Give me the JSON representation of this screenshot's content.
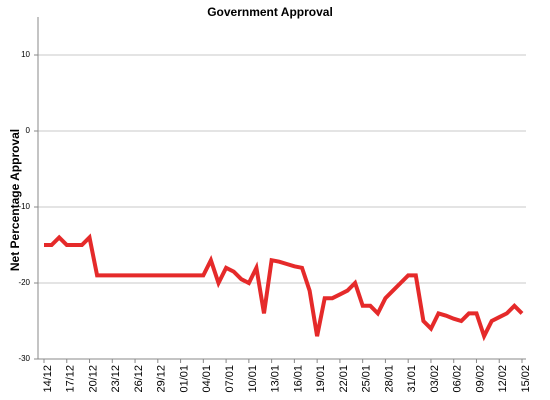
{
  "chart_data": {
    "type": "line",
    "title": "Government Approval",
    "y_label": "Net Percentage Approval",
    "categories": [
      "14/12",
      null,
      null,
      "17/12",
      null,
      null,
      "20/12",
      null,
      null,
      "23/12",
      null,
      null,
      "26/12",
      null,
      null,
      "29/12",
      null,
      null,
      "01/01",
      null,
      null,
      "04/01",
      null,
      null,
      "07/01",
      null,
      null,
      "10/01",
      null,
      null,
      "13/01",
      null,
      null,
      "16/01",
      null,
      null,
      "19/01",
      null,
      null,
      "22/01",
      null,
      null,
      "25/01",
      null,
      null,
      "28/01",
      null,
      null,
      "31/01",
      null,
      null,
      "03/02",
      null,
      null,
      "06/02",
      null,
      null,
      "09/02",
      null,
      null,
      "12/02",
      null,
      null,
      "15/02"
    ],
    "series": [
      {
        "name": "Net Percentage Approval",
        "color": "#e52a2a",
        "values": [
          -15,
          -15,
          -14,
          -15,
          -15,
          -15,
          -14,
          -19,
          -19,
          -19,
          -19,
          -19,
          -19,
          -19,
          -19,
          -19,
          -19,
          -19,
          -19,
          -19,
          -19,
          -19,
          -17,
          -20,
          -18,
          -18.5,
          -19.5,
          -20,
          -18,
          -24,
          -17,
          -17.2,
          -17.5,
          -17.8,
          -18,
          -21,
          -27,
          -22,
          -22,
          -21.5,
          -21,
          -20,
          -23,
          -23,
          -24,
          -22,
          -21,
          -20,
          -19,
          -19,
          -25,
          -26,
          -24,
          -24.3,
          -24.7,
          -25,
          -24,
          -24,
          -27,
          -25,
          -24.5,
          -24,
          -23,
          -24
        ]
      }
    ],
    "ylim": [
      -30,
      15
    ],
    "yticks": [
      -30,
      -20,
      -10,
      0,
      10
    ],
    "grid": true
  }
}
